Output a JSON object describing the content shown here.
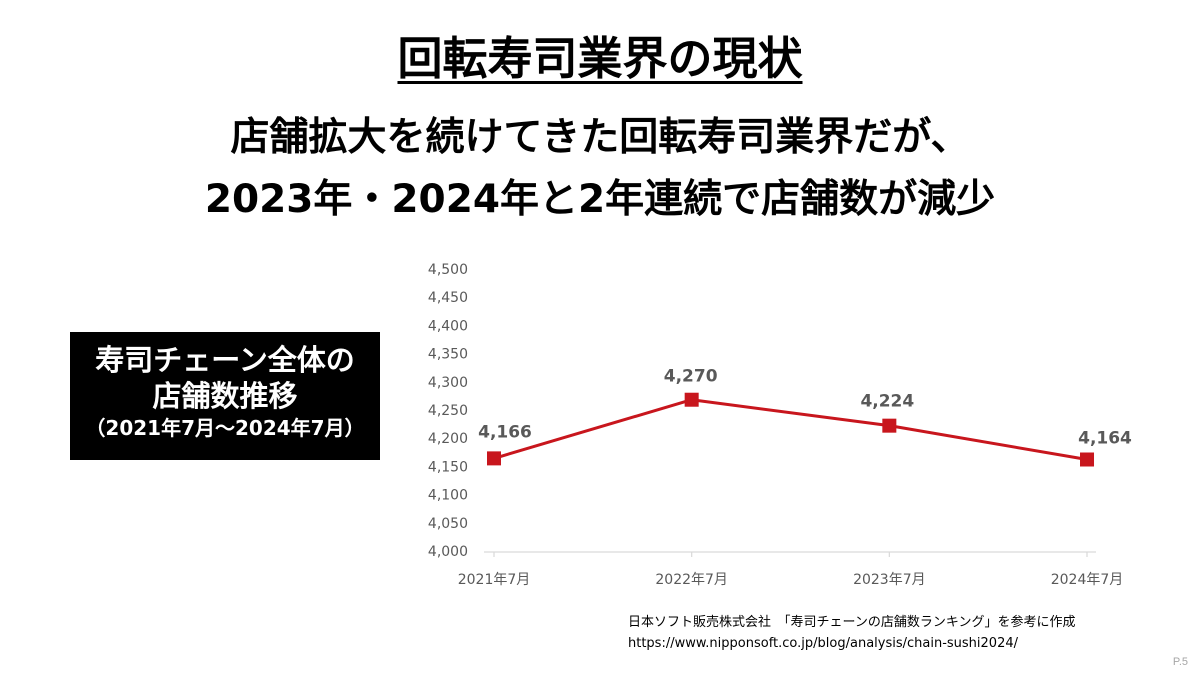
{
  "slide": {
    "title": "回転寿司業界の現状",
    "headline": {
      "line1": "店舗拡大を続けてきた回転寿司業界だが、",
      "line2": "2023年・2024年と2年連続で店舗数が減少"
    },
    "label_box": {
      "line1": "寿司チェーン全体の",
      "line2": "店舗数推移",
      "line3": "（2021年7月～2024年7月）"
    },
    "source": {
      "line1": "日本ソフト販売株式会社　「寿司チェーンの店舗数ランキング」を参考に作成",
      "url": "https://www.nipponsoft.co.jp/blog/analysis/chain-sushi2024/"
    },
    "page_number": "P.5"
  },
  "colors": {
    "axis_text": "#595959",
    "data_label_text": "#595959",
    "axis_line": "#D9D9D9",
    "label_box_background": "#000000",
    "label_box_text": "#FFFFFF",
    "page_number_text": "#A6A6A6"
  },
  "chart_data": {
    "type": "line",
    "categories": [
      "2021年7月",
      "2022年7月",
      "2023年7月",
      "2024年7月"
    ],
    "series": [
      {
        "values": [
          4166,
          4270,
          4224,
          4164
        ],
        "data_labels": [
          "4,166",
          "4,270",
          "4,224",
          "4,164"
        ],
        "color": "#C8161D",
        "marker": "square"
      }
    ],
    "ylim": [
      4000,
      4500
    ],
    "y_tick_labels": [
      "4,000",
      "4,050",
      "4,100",
      "4,150",
      "4,200",
      "4,250",
      "4,300",
      "4,350",
      "4,400",
      "4,450",
      "4,500"
    ],
    "grid": false
  }
}
